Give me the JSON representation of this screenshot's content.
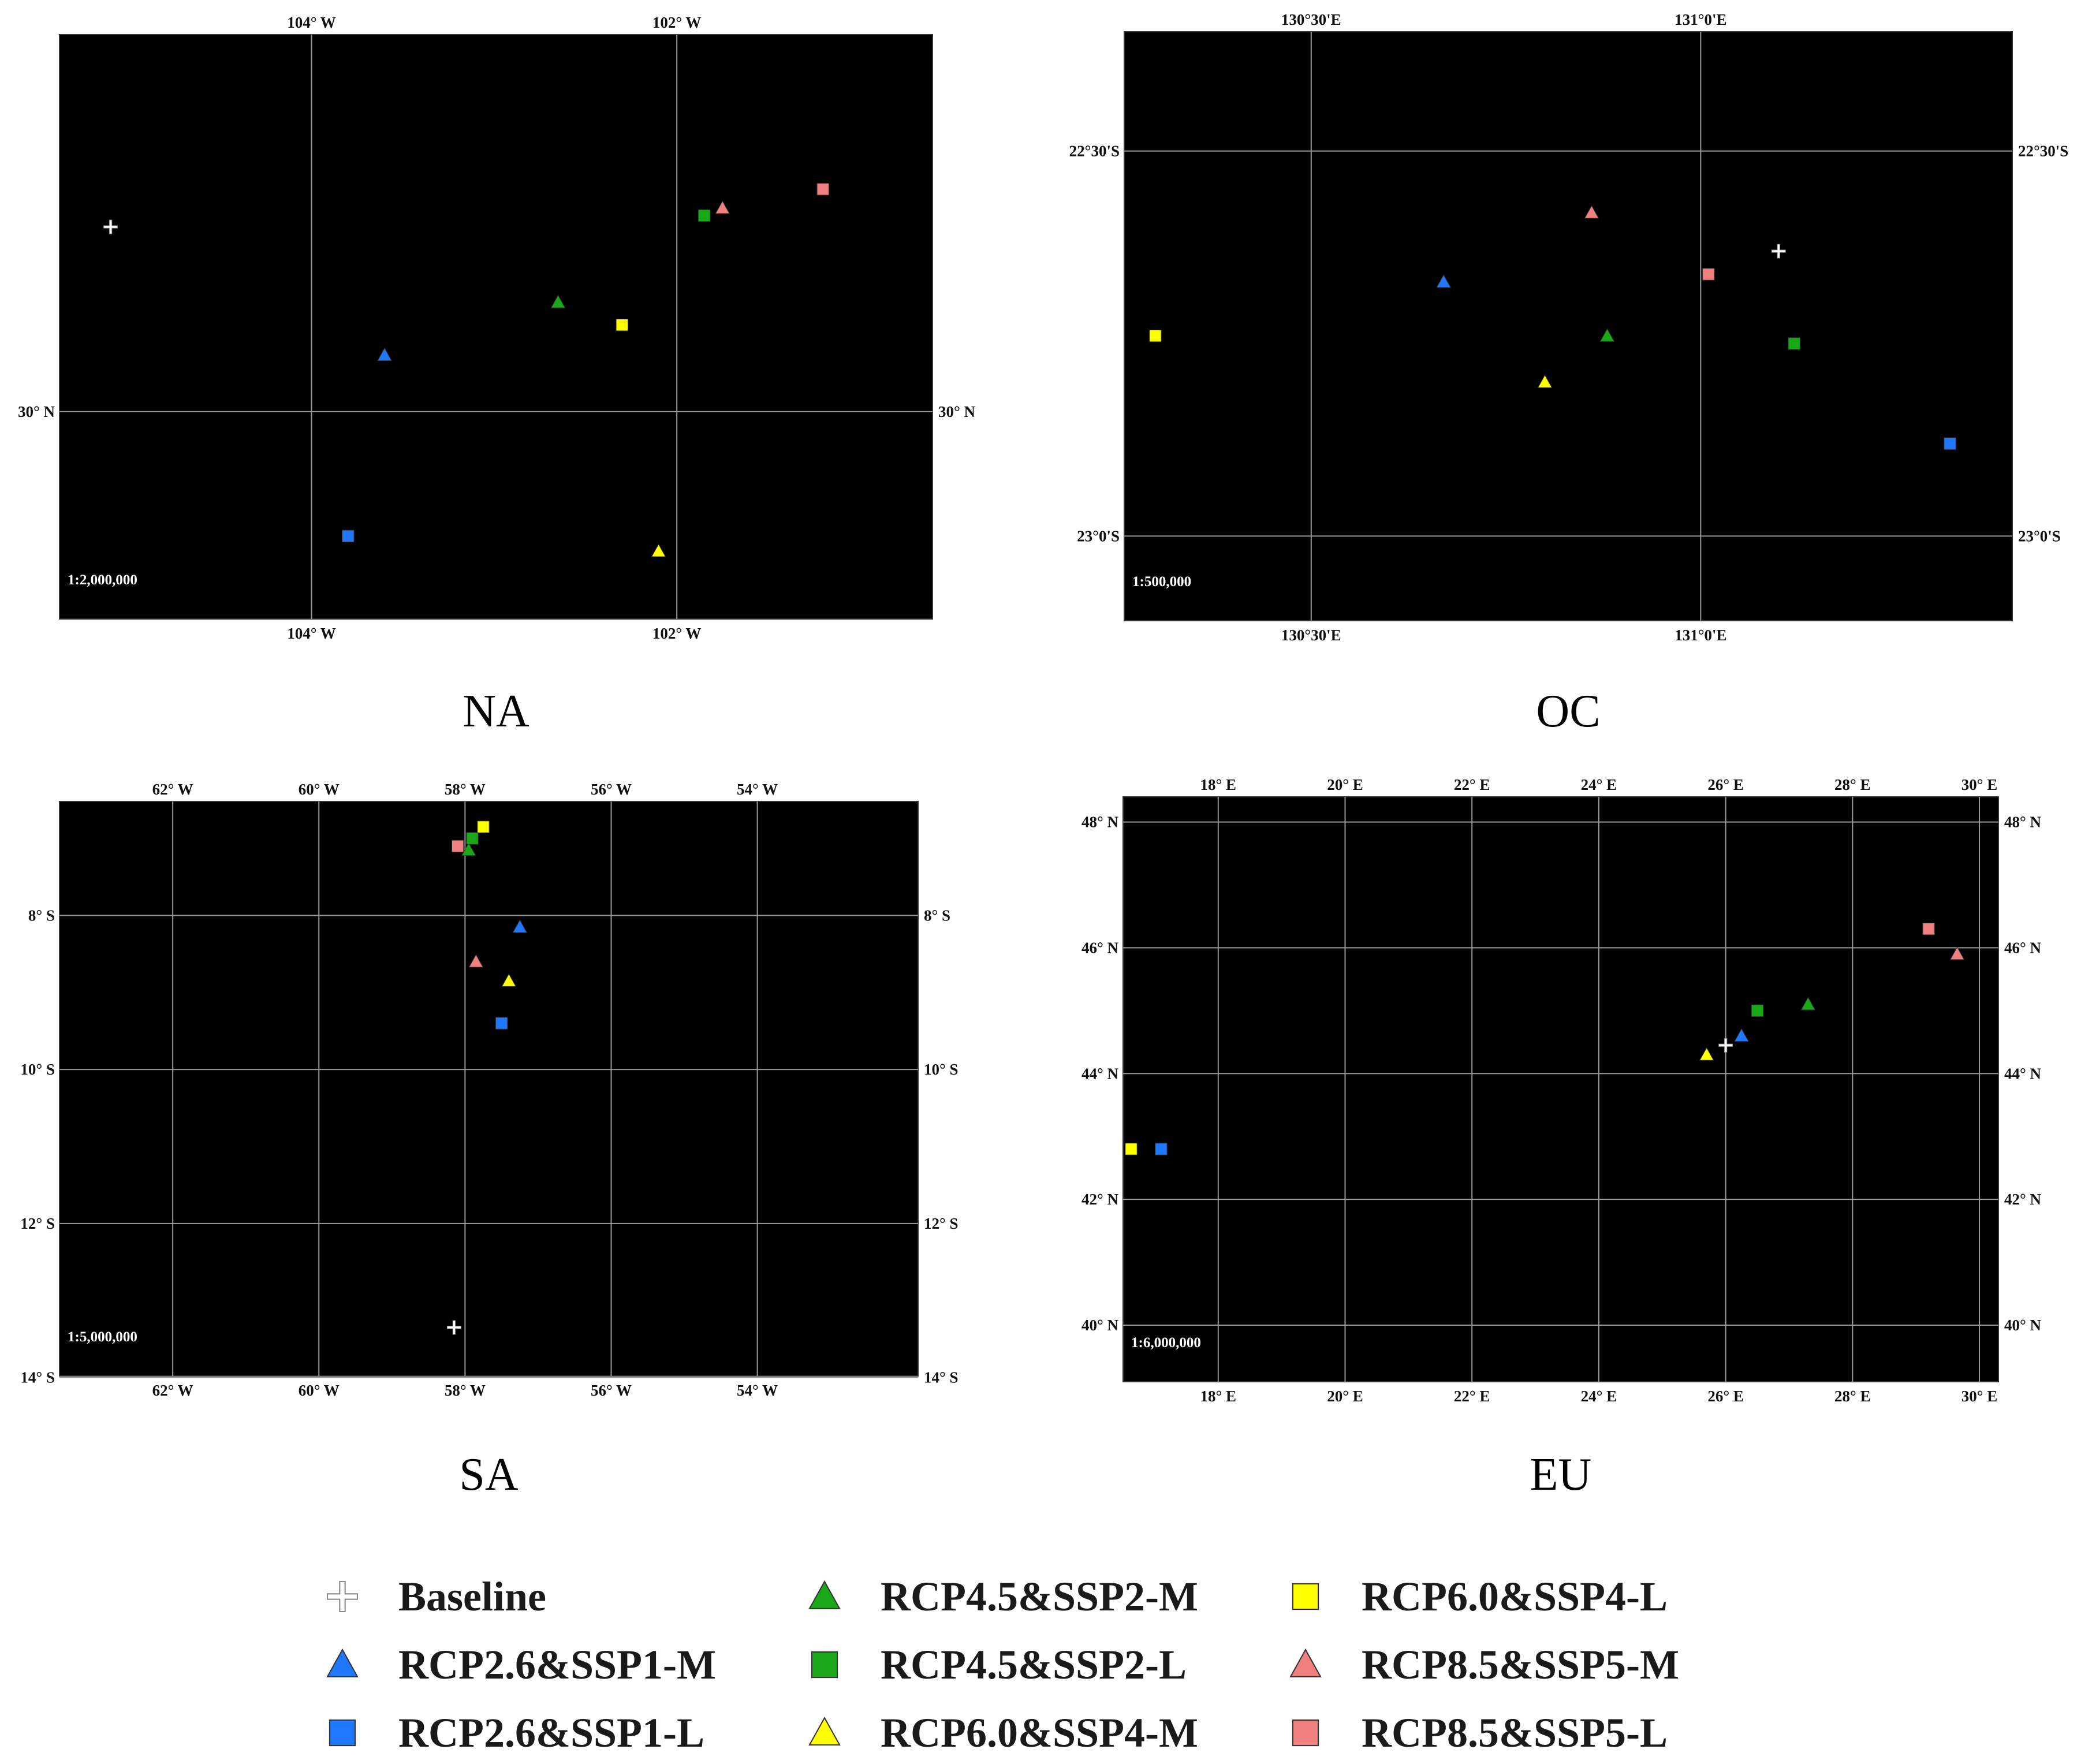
{
  "legend": [
    {
      "key": "baseline",
      "label": "Baseline",
      "shape": "cross",
      "color": "#ffffff"
    },
    {
      "key": "rcp26_m",
      "label": "RCP2.6&SSP1-M",
      "shape": "triangle",
      "color": "#1f78ff"
    },
    {
      "key": "rcp26_l",
      "label": "RCP2.6&SSP1-L",
      "shape": "square",
      "color": "#1f78ff"
    },
    {
      "key": "rcp45_m",
      "label": "RCP4.5&SSP2-M",
      "shape": "triangle",
      "color": "#18a818"
    },
    {
      "key": "rcp45_l",
      "label": "RCP4.5&SSP2-L",
      "shape": "square",
      "color": "#18a818"
    },
    {
      "key": "rcp60_m",
      "label": "RCP6.0&SSP4-M",
      "shape": "triangle",
      "color": "#ffff00"
    },
    {
      "key": "rcp60_l",
      "label": "RCP6.0&SSP4-L",
      "shape": "square",
      "color": "#ffff00"
    },
    {
      "key": "rcp85_m",
      "label": "RCP8.5&SSP5-M",
      "shape": "triangle",
      "color": "#f08080"
    },
    {
      "key": "rcp85_l",
      "label": "RCP8.5&SSP5-L",
      "shape": "square",
      "color": "#f08080"
    }
  ],
  "panels": [
    {
      "id": "na",
      "caption": "NA",
      "scale": "1:2,000,000",
      "lon_range": [
        -105.38,
        -100.6
      ],
      "lat_range": [
        29.45,
        31.0
      ],
      "grid_lon": [
        {
          "v": -104,
          "label": "104° W"
        },
        {
          "v": -102,
          "label": "102° W"
        }
      ],
      "grid_lat": [
        {
          "v": 30,
          "label": "30° N"
        }
      ],
      "left_lat_labels": true,
      "right_lat_labels": true,
      "points": [
        {
          "key": "baseline",
          "lon": -105.1,
          "lat": 30.49
        },
        {
          "key": "rcp26_m",
          "lon": -103.6,
          "lat": 30.15
        },
        {
          "key": "rcp26_l",
          "lon": -103.8,
          "lat": 29.67
        },
        {
          "key": "rcp45_m",
          "lon": -102.65,
          "lat": 30.29
        },
        {
          "key": "rcp45_l",
          "lon": -101.85,
          "lat": 30.52
        },
        {
          "key": "rcp60_m",
          "lon": -102.1,
          "lat": 29.63
        },
        {
          "key": "rcp60_l",
          "lon": -102.3,
          "lat": 30.23
        },
        {
          "key": "rcp85_m",
          "lon": -101.75,
          "lat": 30.54
        },
        {
          "key": "rcp85_l",
          "lon": -101.2,
          "lat": 30.59
        }
      ]
    },
    {
      "id": "oc",
      "caption": "OC",
      "scale": "1:500,000",
      "lon_range": [
        130.26,
        131.4
      ],
      "lat_range": [
        -23.11,
        -22.345
      ],
      "grid_lon": [
        {
          "v": 130.5,
          "label": "130°30'E"
        },
        {
          "v": 131.0,
          "label": "131°0'E"
        }
      ],
      "grid_lat": [
        {
          "v": -22.5,
          "label": "22°30'S"
        },
        {
          "v": -23.0,
          "label": "23°0'S"
        }
      ],
      "left_lat_labels": true,
      "right_lat_labels": true,
      "points": [
        {
          "key": "baseline",
          "lon": 131.1,
          "lat": -22.63
        },
        {
          "key": "rcp26_m",
          "lon": 130.67,
          "lat": -22.67
        },
        {
          "key": "rcp26_l",
          "lon": 131.32,
          "lat": -22.88
        },
        {
          "key": "rcp45_m",
          "lon": 130.88,
          "lat": -22.74
        },
        {
          "key": "rcp45_l",
          "lon": 131.12,
          "lat": -22.75
        },
        {
          "key": "rcp60_m",
          "lon": 130.8,
          "lat": -22.8
        },
        {
          "key": "rcp60_l",
          "lon": 130.3,
          "lat": -22.74
        },
        {
          "key": "rcp85_m",
          "lon": 130.86,
          "lat": -22.58
        },
        {
          "key": "rcp85_l",
          "lon": 131.01,
          "lat": -22.66
        }
      ]
    },
    {
      "id": "sa",
      "caption": "SA",
      "scale": "1:5,000,000",
      "lon_range": [
        -63.55,
        -51.8
      ],
      "lat_range": [
        -13.98,
        -6.52
      ],
      "grid_lon": [
        {
          "v": -62,
          "label": "62° W"
        },
        {
          "v": -60,
          "label": "60° W"
        },
        {
          "v": -58,
          "label": "58° W"
        },
        {
          "v": -56,
          "label": "56° W"
        },
        {
          "v": -54,
          "label": "54° W"
        }
      ],
      "grid_lat": [
        {
          "v": -8,
          "label": "8° S"
        },
        {
          "v": -10,
          "label": "10° S"
        },
        {
          "v": -12,
          "label": "12° S"
        },
        {
          "v": -14,
          "label": "14° S"
        }
      ],
      "left_lat_labels": true,
      "right_lat_labels": true,
      "points": [
        {
          "key": "baseline",
          "lon": -58.15,
          "lat": -13.35
        },
        {
          "key": "rcp26_m",
          "lon": -57.25,
          "lat": -8.15
        },
        {
          "key": "rcp26_l",
          "lon": -57.5,
          "lat": -9.4
        },
        {
          "key": "rcp45_m",
          "lon": -57.95,
          "lat": -7.15
        },
        {
          "key": "rcp45_l",
          "lon": -57.9,
          "lat": -7.0
        },
        {
          "key": "rcp60_m",
          "lon": -57.4,
          "lat": -8.85
        },
        {
          "key": "rcp60_l",
          "lon": -57.75,
          "lat": -6.85
        },
        {
          "key": "rcp85_m",
          "lon": -57.85,
          "lat": -8.6
        },
        {
          "key": "rcp85_l",
          "lon": -58.1,
          "lat": -7.1
        }
      ]
    },
    {
      "id": "eu",
      "caption": "EU",
      "scale": "1:6,000,000",
      "lon_range": [
        16.5,
        30.3
      ],
      "lat_range": [
        39.1,
        48.4
      ],
      "grid_lon": [
        {
          "v": 18,
          "label": "18° E"
        },
        {
          "v": 20,
          "label": "20° E"
        },
        {
          "v": 22,
          "label": "22° E"
        },
        {
          "v": 24,
          "label": "24° E"
        },
        {
          "v": 26,
          "label": "26° E"
        },
        {
          "v": 28,
          "label": "28° E"
        },
        {
          "v": 30,
          "label": "30° E"
        }
      ],
      "grid_lat": [
        {
          "v": 48,
          "label": "48° N"
        },
        {
          "v": 46,
          "label": "46° N"
        },
        {
          "v": 44,
          "label": "44° N"
        },
        {
          "v": 42,
          "label": "42° N"
        },
        {
          "v": 40,
          "label": "40° N"
        }
      ],
      "left_lat_labels": true,
      "right_lat_labels": true,
      "points": [
        {
          "key": "baseline",
          "lon": 26.0,
          "lat": 44.45
        },
        {
          "key": "rcp26_m",
          "lon": 26.25,
          "lat": 44.6
        },
        {
          "key": "rcp26_l",
          "lon": 17.1,
          "lat": 42.8
        },
        {
          "key": "rcp45_m",
          "lon": 27.3,
          "lat": 45.1
        },
        {
          "key": "rcp45_l",
          "lon": 26.5,
          "lat": 45.0
        },
        {
          "key": "rcp60_m",
          "lon": 25.7,
          "lat": 44.3
        },
        {
          "key": "rcp60_l",
          "lon": 16.3,
          "lat": 42.8
        },
        {
          "key": "rcp85_m",
          "lon": 29.65,
          "lat": 45.9
        },
        {
          "key": "rcp85_l",
          "lon": 29.2,
          "lat": 46.3
        }
      ]
    }
  ]
}
